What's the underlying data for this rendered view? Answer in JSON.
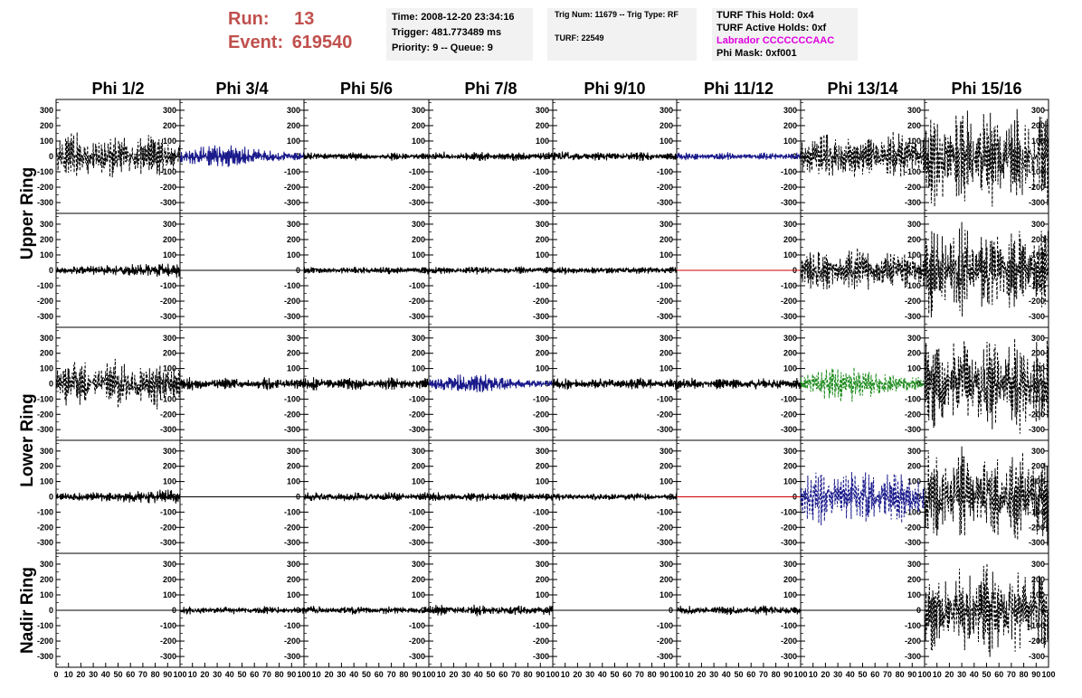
{
  "header": {
    "run_label": "Run:",
    "run_value": "13",
    "event_label": "Event:",
    "event_value": "619540"
  },
  "info_panel_1": {
    "time": "Time: 2008-12-20 23:34:16",
    "trigger": "Trigger: 481.773489 ms",
    "priority": "Priority: 9 -- Queue: 9"
  },
  "info_panel_2": {
    "trig_num": "Trig Num: 11679 -- Trig Type: RF",
    "turf": "TURF: 22549"
  },
  "info_panel_3": {
    "turf_this_hold": "TURF This Hold: 0x4",
    "turf_active_holds": "TURF Active Holds: 0xf",
    "labrador": "Labrador CCCCCCCAAC",
    "phi_mask": "Phi Mask: 0xf001",
    "labrador_color": "#e000e0"
  },
  "chart_data": {
    "type": "line",
    "columns": [
      "Phi 1/2",
      "Phi 3/4",
      "Phi 5/6",
      "Phi 7/8",
      "Phi 9/10",
      "Phi 11/12",
      "Phi 13/14",
      "Phi 15/16"
    ],
    "row_groups": [
      "Upper Ring",
      "Lower Ring",
      "Nadir Ring"
    ],
    "xlim": [
      0,
      100
    ],
    "ylim": [
      -370,
      370
    ],
    "y_ticks": [
      -300,
      -200,
      -100,
      0,
      100,
      200,
      300
    ],
    "x_ticks": [
      0,
      10,
      20,
      30,
      40,
      50,
      60,
      70,
      80,
      90,
      100
    ],
    "colors": {
      "black": "#000000",
      "blue": "#1a1a8c",
      "green": "#1e8c1e",
      "red": "#cc0000"
    },
    "rows": [
      {
        "waveforms": [
          {
            "style": "dashed",
            "color": "black",
            "amplitude": 140,
            "envelope": "beat"
          },
          {
            "style": "solid",
            "color": "blue",
            "amplitude": 70,
            "envelope": "center"
          },
          {
            "style": "solid",
            "color": "black",
            "amplitude": 25,
            "envelope": "flat"
          },
          {
            "style": "solid",
            "color": "black",
            "amplitude": 30,
            "envelope": "flat"
          },
          {
            "style": "solid",
            "color": "black",
            "amplitude": 30,
            "envelope": "flat"
          },
          {
            "style": "solid",
            "color": "blue",
            "amplitude": 25,
            "envelope": "flat"
          },
          {
            "style": "dashed",
            "color": "black",
            "amplitude": 150,
            "envelope": "beat"
          },
          {
            "style": "dashed",
            "color": "black",
            "amplitude": 320,
            "envelope": "big"
          }
        ]
      },
      {
        "waveforms": [
          {
            "style": "solid",
            "color": "black",
            "amplitude": 45,
            "envelope": "rising"
          },
          {
            "style": "flat",
            "color": "black",
            "amplitude": 0,
            "envelope": "flat"
          },
          {
            "style": "solid",
            "color": "black",
            "amplitude": 25,
            "envelope": "flat"
          },
          {
            "style": "solid",
            "color": "black",
            "amplitude": 25,
            "envelope": "flat"
          },
          {
            "style": "solid",
            "color": "black",
            "amplitude": 25,
            "envelope": "flat"
          },
          {
            "style": "flat",
            "color": "red",
            "amplitude": 0,
            "envelope": "flat"
          },
          {
            "style": "dashed",
            "color": "black",
            "amplitude": 130,
            "envelope": "beat"
          },
          {
            "style": "dashed",
            "color": "black",
            "amplitude": 280,
            "envelope": "big"
          }
        ]
      },
      {
        "waveforms": [
          {
            "style": "dashed",
            "color": "black",
            "amplitude": 150,
            "envelope": "beat"
          },
          {
            "style": "solid",
            "color": "black",
            "amplitude": 40,
            "envelope": "flat"
          },
          {
            "style": "solid",
            "color": "black",
            "amplitude": 40,
            "envelope": "flat"
          },
          {
            "style": "solid",
            "color": "blue",
            "amplitude": 60,
            "envelope": "center"
          },
          {
            "style": "solid",
            "color": "black",
            "amplitude": 40,
            "envelope": "flat"
          },
          {
            "style": "solid",
            "color": "black",
            "amplitude": 40,
            "envelope": "flat"
          },
          {
            "style": "dashed",
            "color": "green",
            "amplitude": 110,
            "envelope": "center"
          },
          {
            "style": "dashed",
            "color": "black",
            "amplitude": 300,
            "envelope": "big"
          }
        ]
      },
      {
        "waveforms": [
          {
            "style": "solid",
            "color": "black",
            "amplitude": 45,
            "envelope": "rising"
          },
          {
            "style": "flat",
            "color": "black",
            "amplitude": 0,
            "envelope": "flat"
          },
          {
            "style": "solid",
            "color": "black",
            "amplitude": 30,
            "envelope": "flat"
          },
          {
            "style": "solid",
            "color": "black",
            "amplitude": 30,
            "envelope": "flat"
          },
          {
            "style": "solid",
            "color": "black",
            "amplitude": 25,
            "envelope": "flat"
          },
          {
            "style": "flat",
            "color": "red",
            "amplitude": 0,
            "envelope": "flat"
          },
          {
            "style": "dashed",
            "color": "blue",
            "amplitude": 170,
            "envelope": "beat"
          },
          {
            "style": "dashed",
            "color": "black",
            "amplitude": 300,
            "envelope": "big"
          }
        ]
      },
      {
        "waveforms": [
          {
            "style": "flat",
            "color": "black",
            "amplitude": 0,
            "envelope": "flat"
          },
          {
            "style": "solid",
            "color": "black",
            "amplitude": 25,
            "envelope": "flat"
          },
          {
            "style": "solid",
            "color": "black",
            "amplitude": 25,
            "envelope": "flat"
          },
          {
            "style": "solid",
            "color": "black",
            "amplitude": 35,
            "envelope": "flat"
          },
          {
            "style": "flat",
            "color": "black",
            "amplitude": 0,
            "envelope": "flat"
          },
          {
            "style": "solid",
            "color": "black",
            "amplitude": 30,
            "envelope": "flat"
          },
          {
            "style": "flat",
            "color": "black",
            "amplitude": 0,
            "envelope": "flat"
          },
          {
            "style": "dashed",
            "color": "black",
            "amplitude": 300,
            "envelope": "big"
          }
        ]
      }
    ]
  }
}
